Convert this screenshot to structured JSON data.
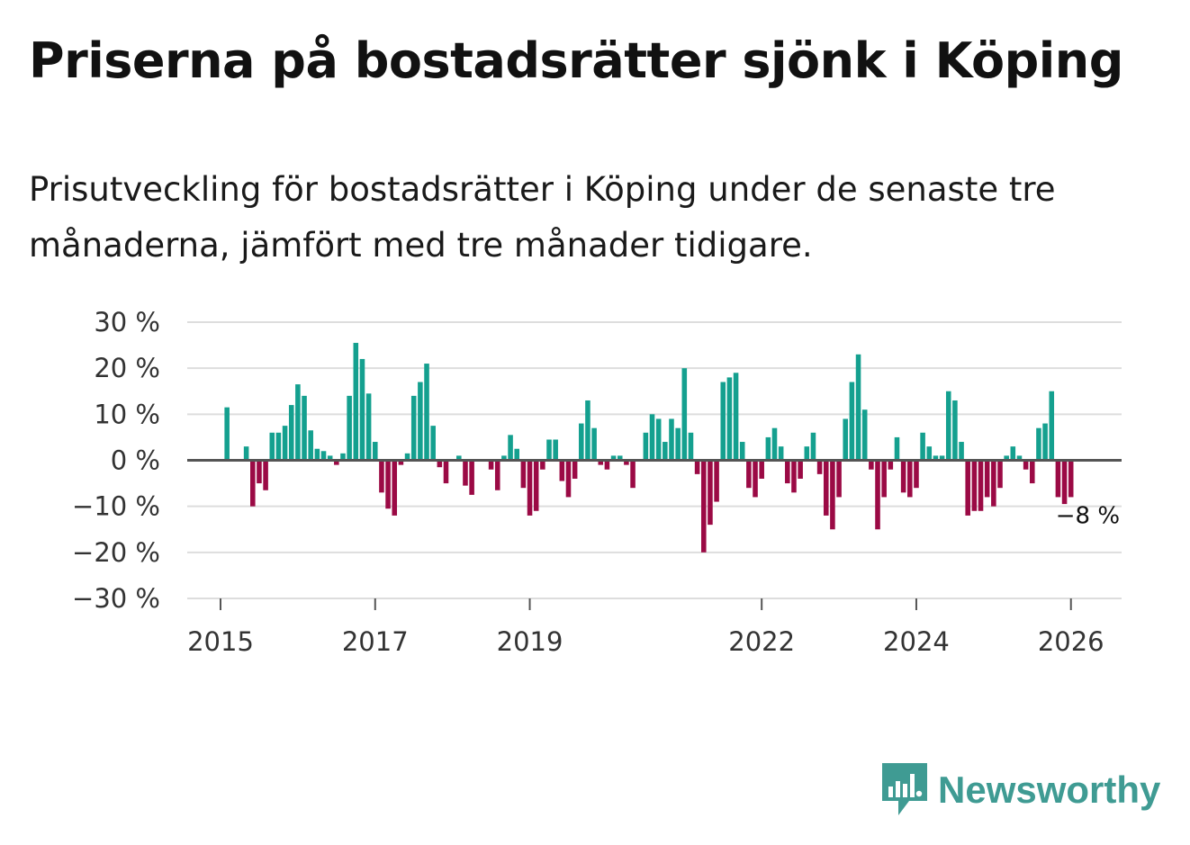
{
  "header": {
    "title": "Priserna på bostadsrätter sjönk i Köping",
    "subtitle": "Prisutveckling för bostadsrätter i Köping under de senaste tre månaderna, jämfört med tre månader tidigare."
  },
  "brand": {
    "name": "Newsworthy",
    "icon": "newsworthy-logo-icon"
  },
  "colors": {
    "positive": "#14a08f",
    "negative": "#9b0a45",
    "grid": "#dddddd",
    "axis": "#555555",
    "brand": "#3f9b93"
  },
  "chart_data": {
    "type": "bar",
    "title": "Priserna på bostadsrätter sjönk i Köping",
    "xlabel": "",
    "ylabel": "",
    "unit": "%",
    "ylim": [
      -30,
      30
    ],
    "yticks": [
      30,
      20,
      10,
      0,
      -10,
      -20,
      -30
    ],
    "ytick_labels": [
      "30 %",
      "20 %",
      "10 %",
      "0 %",
      "−10 %",
      "−20 %",
      "−30 %"
    ],
    "x_start": "2015-01",
    "x_ticks": [
      {
        "label": "2015",
        "month_index": 0
      },
      {
        "label": "2017",
        "month_index": 24
      },
      {
        "label": "2019",
        "month_index": 48
      },
      {
        "label": "2022",
        "month_index": 84
      },
      {
        "label": "2024",
        "month_index": 108
      },
      {
        "label": "2026",
        "month_index": 132
      }
    ],
    "values": [
      null,
      11.5,
      null,
      null,
      3,
      -10,
      -5,
      -6.5,
      6,
      6,
      7.5,
      12,
      16.5,
      14,
      6.5,
      2.5,
      2,
      1,
      -1,
      1.5,
      14,
      25.5,
      22,
      14.5,
      4,
      -7,
      -10.5,
      -12,
      -1,
      1.5,
      14,
      17,
      21,
      7.5,
      -1.5,
      -5,
      null,
      1,
      -5.5,
      -7.5,
      null,
      null,
      -2,
      -6.5,
      1,
      5.5,
      2.5,
      -6,
      -12,
      -11,
      -2,
      4.5,
      4.5,
      -4.5,
      -8,
      -4,
      8,
      13,
      7,
      -1,
      -2,
      1,
      1,
      -1,
      -6,
      null,
      6,
      10,
      9,
      4,
      9,
      7,
      20,
      6,
      -3,
      -20,
      -14,
      -9,
      17,
      18,
      19,
      4,
      -6,
      -8,
      -4,
      5,
      7,
      3,
      -5,
      -7,
      -4,
      3,
      6,
      -3,
      -12,
      -15,
      -8,
      9,
      17,
      23,
      11,
      -2,
      -15,
      -8,
      -2,
      5,
      -7,
      -8,
      -6,
      6,
      3,
      1,
      1,
      15,
      13,
      4,
      -12,
      -11,
      -11,
      -8,
      -10,
      -6,
      1,
      3,
      1,
      -2,
      -5,
      7,
      8,
      15,
      -8,
      -9.5,
      -8
    ],
    "annotation": {
      "label": "−8 %",
      "value": -8,
      "month_index": 134
    }
  }
}
